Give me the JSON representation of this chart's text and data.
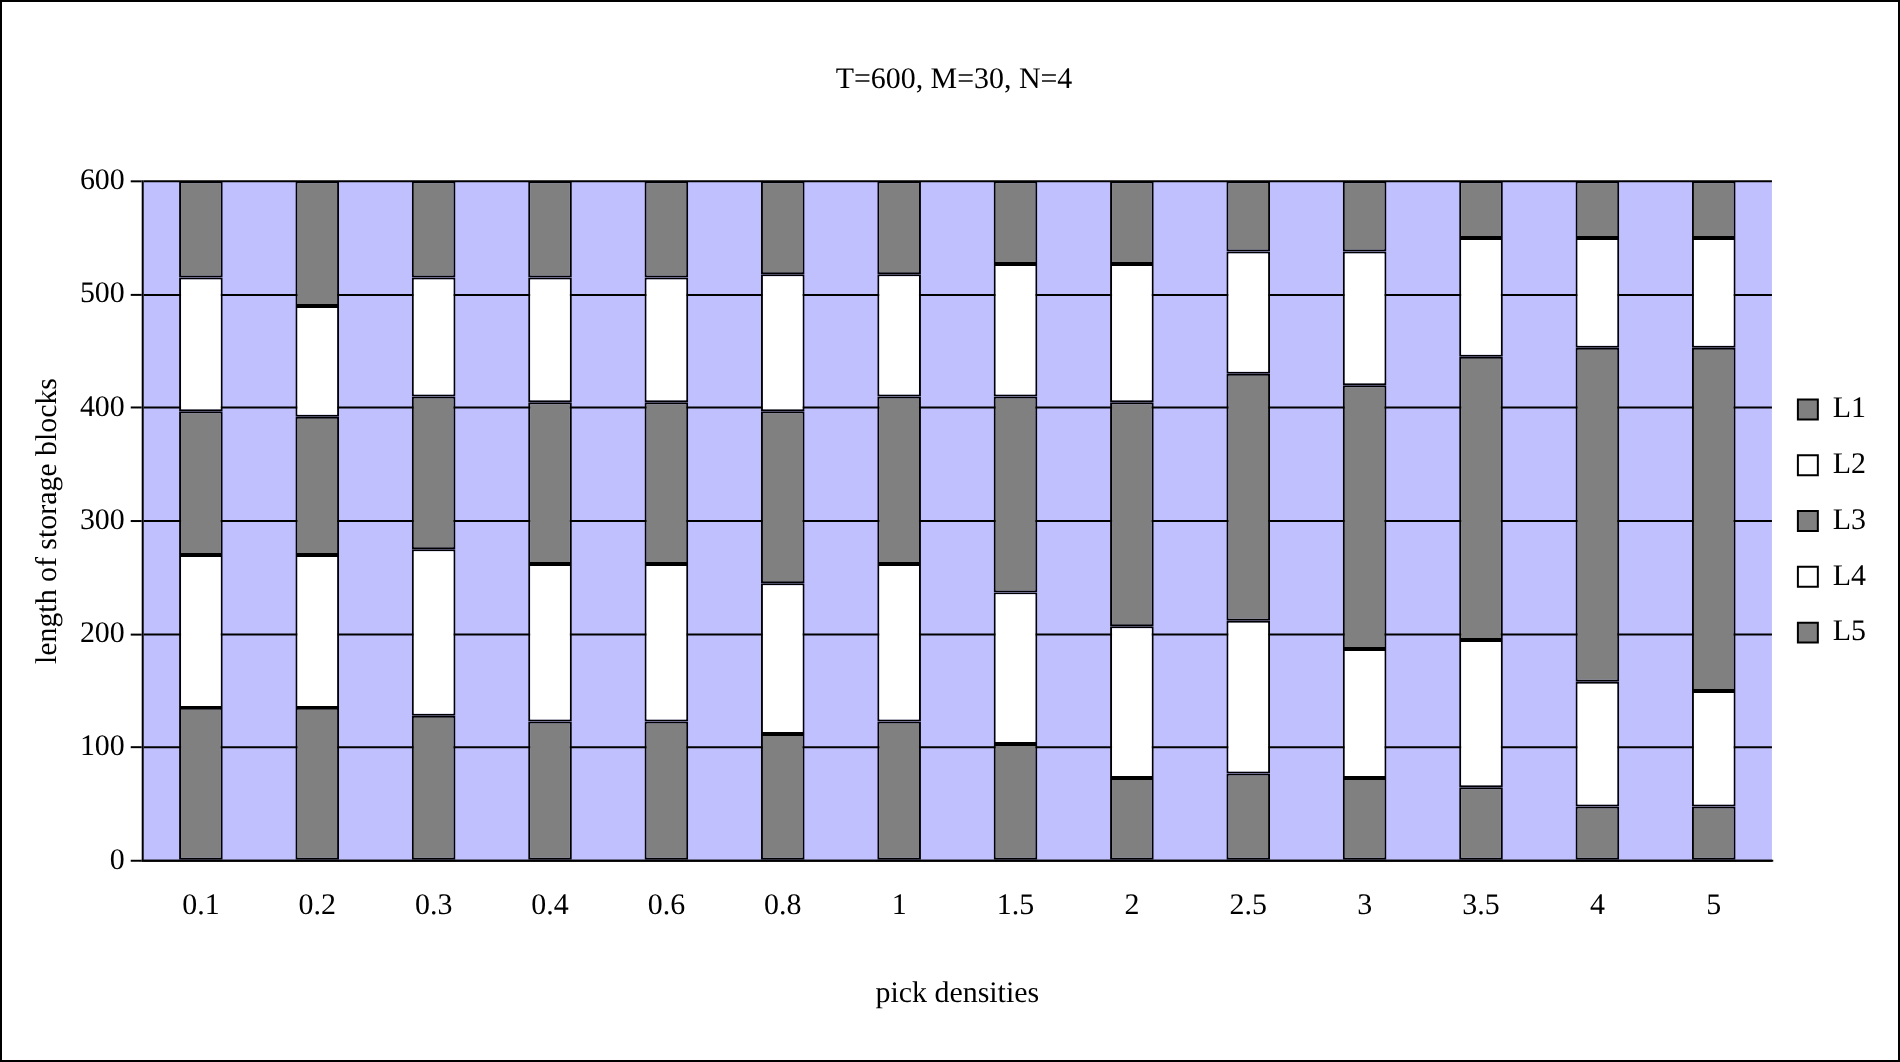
{
  "chart_data": {
    "type": "bar",
    "stacked": true,
    "title": "T=600, M=30, N=4",
    "xlabel": "pick densities",
    "ylabel": "length of storage blocks",
    "categories": [
      "0.1",
      "0.2",
      "0.3",
      "0.4",
      "0.6",
      "0.8",
      "1",
      "1.5",
      "2",
      "2.5",
      "3",
      "3.5",
      "4",
      "5"
    ],
    "ylim": [
      0,
      600
    ],
    "yticks": [
      0,
      100,
      200,
      300,
      400,
      500,
      600
    ],
    "grid": "y",
    "legend": "right",
    "series": [
      {
        "name": "L5",
        "color": "#808080",
        "values": [
          135,
          135,
          128,
          123,
          123,
          112,
          123,
          103,
          73,
          77,
          73,
          65,
          48,
          48
        ]
      },
      {
        "name": "L4",
        "color": "#ffffff",
        "values": [
          135,
          135,
          147,
          139,
          139,
          133,
          139,
          134,
          134,
          135,
          114,
          130,
          110,
          102
        ]
      },
      {
        "name": "L3",
        "color": "#808080",
        "values": [
          127,
          122,
          135,
          143,
          143,
          152,
          148,
          173,
          198,
          218,
          233,
          250,
          295,
          303
        ]
      },
      {
        "name": "L2",
        "color": "#ffffff",
        "values": [
          118,
          98,
          105,
          110,
          110,
          121,
          108,
          117,
          122,
          108,
          118,
          105,
          97,
          97
        ]
      },
      {
        "name": "L1",
        "color": "#808080",
        "values": [
          85,
          110,
          85,
          85,
          85,
          82,
          82,
          73,
          73,
          62,
          62,
          50,
          50,
          50
        ]
      }
    ]
  }
}
